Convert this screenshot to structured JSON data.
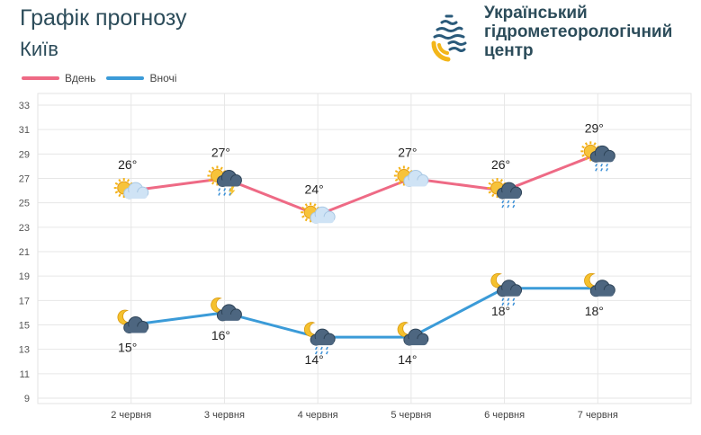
{
  "header": {
    "title": "Графік прогнозу",
    "city": "Київ",
    "org_line1": "Український",
    "org_line2": "гідрометеорологічний",
    "org_line3": "центр"
  },
  "colors": {
    "day": "#ee6a85",
    "night": "#3b9bd8",
    "title": "#2c4c5a",
    "logo_blue": "#2a5a7a",
    "logo_yellow": "#f3b619"
  },
  "chart_data": {
    "type": "line",
    "categories": [
      "2 червня",
      "3 червня",
      "4 червня",
      "5 червня",
      "6 червня",
      "7 червня"
    ],
    "series": [
      {
        "name": "Вдень",
        "values": [
          26,
          27,
          24,
          27,
          26,
          29
        ],
        "labels": [
          "26°",
          "27°",
          "24°",
          "27°",
          "26°",
          "29°"
        ],
        "icons": [
          "sun-cloud",
          "sun-cloud-storm",
          "sun-cloud",
          "sun-cloud",
          "sun-cloud-rain",
          "sun-cloud-rain"
        ]
      },
      {
        "name": "Вночі",
        "values": [
          15,
          16,
          14,
          14,
          18,
          18
        ],
        "labels": [
          "15°",
          "16°",
          "14°",
          "14°",
          "18°",
          "18°"
        ],
        "icons": [
          "moon-cloud",
          "moon-cloud",
          "moon-cloud-rain",
          "moon-cloud",
          "moon-cloud-rain",
          "moon-cloud"
        ]
      }
    ],
    "y_ticks": [
      9,
      11,
      13,
      15,
      17,
      19,
      21,
      23,
      25,
      27,
      29,
      31,
      33
    ],
    "ylim": [
      9,
      33
    ],
    "grid": true,
    "legend": "top-left"
  }
}
